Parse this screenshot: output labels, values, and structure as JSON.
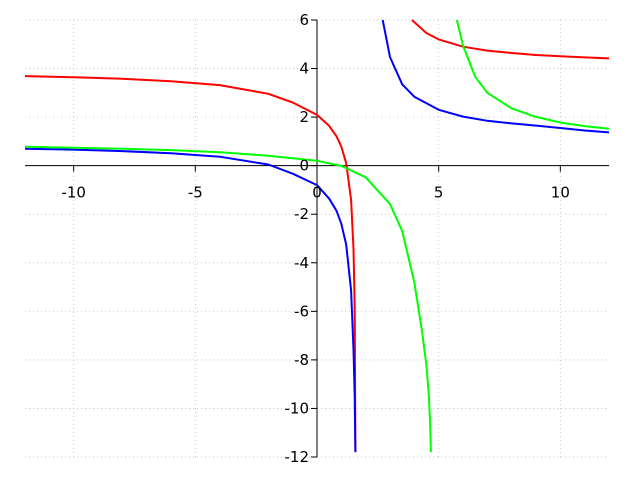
{
  "chart_data": {
    "type": "line",
    "title": "",
    "xlabel": "",
    "ylabel": "",
    "xlim": [
      -12,
      12
    ],
    "ylim": [
      -12,
      6
    ],
    "grid": true,
    "legend": "none",
    "x_ticks": [
      {
        "value": -10,
        "label": "-10"
      },
      {
        "value": -5,
        "label": "-5"
      },
      {
        "value": 0,
        "label": "0"
      },
      {
        "value": 5,
        "label": "5"
      },
      {
        "value": 10,
        "label": "10"
      }
    ],
    "y_ticks": [
      {
        "value": 6,
        "label": "6"
      },
      {
        "value": 4,
        "label": "4"
      },
      {
        "value": 2,
        "label": "2"
      },
      {
        "value": 0,
        "label": "0"
      },
      {
        "value": -2,
        "label": "-2"
      },
      {
        "value": -4,
        "label": "-4"
      },
      {
        "value": -6,
        "label": "-6"
      },
      {
        "value": -8,
        "label": "-8"
      },
      {
        "value": -10,
        "label": "-10"
      },
      {
        "value": -12,
        "label": "-12"
      }
    ],
    "series": [
      {
        "color": "#ff0000",
        "branches": [
          {
            "x": [
              -12,
              -10,
              -8,
              -6,
              -4,
              -2,
              -1,
              0,
              0.5,
              0.8,
              1.0,
              1.2,
              1.4,
              1.5,
              1.55,
              1.58
            ],
            "y": [
              3.69,
              3.64,
              3.58,
              3.48,
              3.32,
              2.96,
              2.6,
              2.09,
              1.64,
              1.21,
              0.79,
              0.1,
              -1.41,
              -3.43,
              -5.86,
              -11.8
            ]
          },
          {
            "x": [
              3.9,
              4.5,
              5,
              6,
              7,
              8,
              9,
              10,
              11,
              12
            ],
            "y": [
              6.0,
              5.46,
              5.2,
              4.9,
              4.74,
              4.64,
              4.56,
              4.51,
              4.46,
              4.42
            ]
          }
        ]
      },
      {
        "color": "#0000ff",
        "branches": [
          {
            "x": [
              -12,
              -10,
              -8,
              -6,
              -4,
              -2,
              -1,
              0,
              0.5,
              0.8,
              1.0,
              1.2,
              1.4,
              1.5,
              1.55,
              1.58
            ],
            "y": [
              0.7,
              0.66,
              0.6,
              0.51,
              0.37,
              0.05,
              -0.33,
              -0.8,
              -1.36,
              -1.86,
              -2.39,
              -3.25,
              -5.14,
              -7.58,
              -9.5,
              -11.8
            ]
          },
          {
            "x": [
              2.7,
              3,
              3.5,
              4,
              5,
              6,
              7,
              8,
              9,
              10,
              11,
              12
            ],
            "y": [
              6.0,
              4.47,
              3.35,
              2.84,
              2.3,
              2.02,
              1.85,
              1.74,
              1.65,
              1.55,
              1.45,
              1.37
            ]
          }
        ]
      },
      {
        "color": "#00ff00",
        "branches": [
          {
            "x": [
              -12,
              -10,
              -8,
              -6,
              -4,
              -2,
              0,
              1,
              2,
              3,
              3.5,
              4,
              4.3,
              4.5,
              4.6,
              4.65,
              4.68
            ],
            "y": [
              0.78,
              0.74,
              0.7,
              0.64,
              0.55,
              0.41,
              0.2,
              -0.01,
              -0.48,
              -1.58,
              -2.69,
              -4.8,
              -6.7,
              -8.25,
              -9.5,
              -10.6,
              -11.8
            ]
          },
          {
            "x": [
              5.75,
              6,
              6.5,
              7,
              8,
              9,
              10,
              11,
              12
            ],
            "y": [
              6.0,
              4.95,
              3.66,
              3.0,
              2.36,
              2.01,
              1.78,
              1.63,
              1.52
            ]
          }
        ]
      }
    ]
  }
}
